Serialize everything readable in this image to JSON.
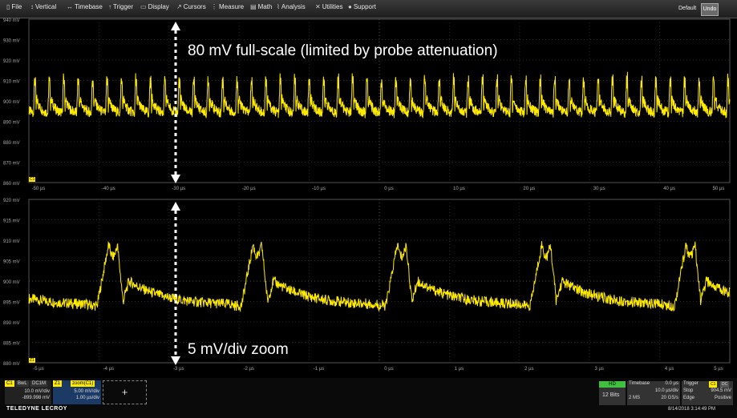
{
  "menu": [
    {
      "icon": "file-icon",
      "glyph": "▯",
      "label": "File"
    },
    {
      "icon": "vertical-icon",
      "glyph": "↕",
      "label": "Vertical"
    },
    {
      "icon": "timebase-icon",
      "glyph": "↔",
      "label": "Timebase"
    },
    {
      "icon": "trigger-icon",
      "glyph": "↑",
      "label": "Trigger"
    },
    {
      "icon": "display-icon",
      "glyph": "▭",
      "label": "Display"
    },
    {
      "icon": "cursors-icon",
      "glyph": "↗",
      "label": "Cursors"
    },
    {
      "icon": "measure-icon",
      "glyph": "⋮",
      "label": "Measure"
    },
    {
      "icon": "math-icon",
      "glyph": "▤",
      "label": "Math"
    },
    {
      "icon": "analysis-icon",
      "glyph": "⌇",
      "label": "Analysis"
    },
    {
      "icon": "utilities-icon",
      "glyph": "✕",
      "label": "Utilities"
    },
    {
      "icon": "support-icon",
      "glyph": "●",
      "label": "Support"
    }
  ],
  "default_label": "Default",
  "default_icon_text": "Undo",
  "trace_color": "#ffea00",
  "top_grid": {
    "y_labels": [
      "940 mV",
      "930 mV",
      "920 mV",
      "910 mV",
      "900 mV",
      "890 mV",
      "880 mV",
      "870 mV",
      "860 mV"
    ],
    "x_labels": [
      "-50 µs",
      "-40 µs",
      "-30 µs",
      "-20 µs",
      "-10 µs",
      "0 µs",
      "10 µs",
      "20 µs",
      "30 µs",
      "40 µs",
      "50 µs"
    ],
    "annotation": "80 mV full-scale (limited by probe attenuation)"
  },
  "bottom_grid": {
    "y_labels": [
      "920 mV",
      "915 mV",
      "910 mV",
      "905 mV",
      "900 mV",
      "895 mV",
      "890 mV",
      "885 mV",
      "880 mV"
    ],
    "x_labels": [
      "-5 µs",
      "-4 µs",
      "-3 µs",
      "-2 µs",
      "-1 µs",
      "0 µs",
      "1 µs",
      "2 µs",
      "3 µs",
      "4 µs",
      "5 µs"
    ],
    "annotation": "5 mV/div zoom"
  },
  "markers": {
    "top_left": "C1",
    "bottom_left": "Z1"
  },
  "channel_c1": {
    "name": "C1",
    "tag1": "BwL",
    "tag2": "DC1M",
    "scale": "10.0 mV/div",
    "offset": "-899.998 mV"
  },
  "channel_z1": {
    "name": "Z1",
    "source": "zoom(C1)",
    "scale": "5.00 mV/div",
    "time": "1.00 µs/div"
  },
  "add_button": "+",
  "hd": {
    "label": "HD",
    "bits": "12 Bits"
  },
  "timebase": {
    "title": "Timebase",
    "delay": "0.0 µs",
    "div": "10.0 µs/div",
    "points": "2 MS",
    "rate": "20 GS/s"
  },
  "trigger": {
    "title": "Trigger",
    "tag1": "C1",
    "tag2": "DC",
    "mode": "Stop",
    "level": "904.5 mV",
    "type": "Edge",
    "slope": "Positive"
  },
  "brand": "TELEDYNE LECROY",
  "datetime": "8/14/2018 3:14:49 PM"
}
